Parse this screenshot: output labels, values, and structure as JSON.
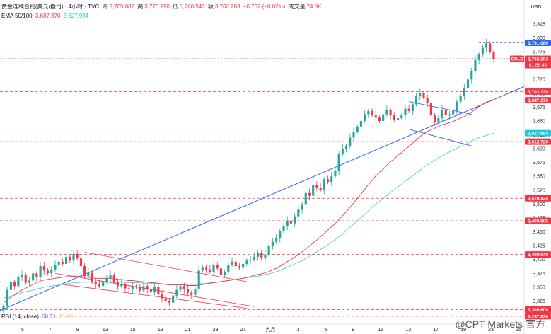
{
  "header": {
    "symbol": "黄金连续合约(美元/盎司) · 4小时 · TVC",
    "open_label": "开",
    "open": "3,765.882",
    "high_label": "高",
    "high": "3,770.190",
    "low_label": "低",
    "low": "3,760.540",
    "close_label": "收",
    "close": "3,762.283",
    "change": "−0.702 (−0.02%)",
    "volume_label": "成交量",
    "volume": "74.8K",
    "ema_title": "EMA 50/100",
    "ema50": "3,687.370",
    "ema100": "3,627.984",
    "rsi_title": "RSI (14, close)",
    "rsi_value": "68.31",
    "rsi_ma": "71.85"
  },
  "colors": {
    "up": "#26a69a",
    "down": "#f23645",
    "ema50": "#f23645",
    "ema100": "#4dd0e1",
    "trend": "#2962ff",
    "level": "#f23645",
    "channel": "#f23645",
    "resistance_dashed": "#2962ff"
  },
  "watermark": "@CPT Markets 官方",
  "chart_data": {
    "type": "candlestick",
    "currency": "USD",
    "ylim": [
      3300,
      3830
    ],
    "y_ticks": [
      3825,
      3800,
      3775,
      3750,
      3725,
      3700,
      3675,
      3650,
      3625,
      3600,
      3575,
      3550,
      3525,
      3500,
      3475,
      3450,
      3425,
      3400,
      3375,
      3350,
      3325,
      3300
    ],
    "x_ticks": [
      "5",
      "7",
      "9",
      "13",
      "15",
      "19",
      "21",
      "23",
      "27",
      "九月",
      "3",
      "5",
      "9",
      "11",
      "13",
      "17",
      "19",
      "23",
      "25"
    ],
    "price_labels": [
      {
        "value": 3791.08,
        "text": "3,791.080",
        "kind": "blue"
      },
      {
        "value": 3762.283,
        "text": "3,762.283",
        "kind": "red",
        "tag": "GOLD",
        "sub": "01:56:49"
      },
      {
        "value": 3703.13,
        "text": "3,703.130",
        "kind": "red"
      },
      {
        "value": 3687.37,
        "text": "3,687.370",
        "kind": "red"
      },
      {
        "value": 3627.984,
        "text": "3,627.984",
        "kind": "cyan"
      },
      {
        "value": 3612.72,
        "text": "3,612.720",
        "kind": "red"
      },
      {
        "value": 3510.425,
        "text": "3,510.425",
        "kind": "red"
      },
      {
        "value": 3469.805,
        "text": "3,469.805",
        "kind": "red"
      },
      {
        "value": 3409.04,
        "text": "3,409.040",
        "kind": "red"
      },
      {
        "value": 3309.6,
        "text": "3,309.600",
        "kind": "red"
      },
      {
        "value": 3297.63,
        "text": "3,297.630",
        "kind": "red"
      }
    ],
    "levels": [
      3703.13,
      3612.72,
      3510.425,
      3469.805,
      3409.04,
      3309.6,
      3297.63
    ],
    "closes": [
      3316,
      3345,
      3360,
      3352,
      3368,
      3372,
      3358,
      3362,
      3375,
      3368,
      3388,
      3380,
      3375,
      3382,
      3390,
      3396,
      3392,
      3405,
      3398,
      3410,
      3402,
      3388,
      3370,
      3376,
      3360,
      3355,
      3352,
      3360,
      3366,
      3372,
      3360,
      3352,
      3355,
      3348,
      3346,
      3352,
      3350,
      3344,
      3352,
      3346,
      3342,
      3350,
      3338,
      3330,
      3325,
      3322,
      3335,
      3345,
      3352,
      3346,
      3340,
      3336,
      3346,
      3380,
      3385,
      3382,
      3378,
      3390,
      3384,
      3372,
      3378,
      3390,
      3396,
      3388,
      3385,
      3392,
      3398,
      3400,
      3405,
      3412,
      3402,
      3408,
      3425,
      3432,
      3438,
      3452,
      3460,
      3470,
      3465,
      3478,
      3490,
      3500,
      3520,
      3515,
      3535,
      3530,
      3525,
      3545,
      3540,
      3550,
      3560,
      3590,
      3600,
      3605,
      3620,
      3630,
      3640,
      3650,
      3662,
      3668,
      3660,
      3656,
      3650,
      3662,
      3670,
      3660,
      3652,
      3655,
      3660,
      3672,
      3668,
      3680,
      3695,
      3700,
      3692,
      3682,
      3660,
      3648,
      3655,
      3670,
      3660,
      3662,
      3668,
      3685,
      3695,
      3710,
      3725,
      3740,
      3760,
      3770,
      3782,
      3790,
      3774,
      3762
    ],
    "ema50": [
      3322,
      3327,
      3332,
      3336,
      3341,
      3345,
      3348,
      3351,
      3355,
      3358,
      3361,
      3363,
      3364,
      3365,
      3366,
      3367,
      3368,
      3369,
      3369,
      3370,
      3370,
      3369,
      3368,
      3368,
      3367,
      3366,
      3366,
      3366,
      3366,
      3366,
      3365,
      3364,
      3364,
      3363,
      3362,
      3362,
      3361,
      3360,
      3360,
      3359,
      3358,
      3358,
      3357,
      3356,
      3355,
      3354,
      3354,
      3354,
      3354,
      3354,
      3353,
      3353,
      3353,
      3354,
      3355,
      3356,
      3357,
      3358,
      3359,
      3360,
      3361,
      3362,
      3363,
      3364,
      3365,
      3366,
      3368,
      3369,
      3371,
      3373,
      3374,
      3376,
      3378,
      3381,
      3384,
      3388,
      3392,
      3396,
      3400,
      3404,
      3409,
      3414,
      3419,
      3424,
      3430,
      3435,
      3441,
      3447,
      3453,
      3459,
      3465,
      3472,
      3479,
      3486,
      3494,
      3502,
      3510,
      3518,
      3527,
      3535,
      3543,
      3551,
      3557,
      3563,
      3570,
      3576,
      3582,
      3588,
      3593,
      3599,
      3604,
      3610,
      3616,
      3622,
      3627,
      3631,
      3634,
      3637,
      3640,
      3643,
      3645,
      3647,
      3649,
      3652,
      3655,
      3658,
      3662,
      3666,
      3671,
      3676,
      3680,
      3684,
      3686,
      3687.37
    ],
    "ema100": [
      3330,
      3332,
      3334,
      3336,
      3338,
      3340,
      3342,
      3343,
      3345,
      3347,
      3348,
      3350,
      3351,
      3352,
      3353,
      3354,
      3355,
      3356,
      3357,
      3358,
      3358,
      3359,
      3359,
      3359,
      3359,
      3359,
      3359,
      3359,
      3359,
      3359,
      3359,
      3359,
      3359,
      3359,
      3358,
      3358,
      3358,
      3358,
      3357,
      3357,
      3357,
      3357,
      3356,
      3356,
      3356,
      3355,
      3355,
      3355,
      3355,
      3355,
      3355,
      3355,
      3355,
      3356,
      3357,
      3357,
      3358,
      3359,
      3359,
      3360,
      3361,
      3362,
      3363,
      3364,
      3365,
      3366,
      3367,
      3368,
      3369,
      3370,
      3371,
      3373,
      3374,
      3376,
      3378,
      3380,
      3383,
      3386,
      3389,
      3392,
      3395,
      3398,
      3402,
      3406,
      3410,
      3414,
      3418,
      3422,
      3426,
      3431,
      3436,
      3441,
      3446,
      3452,
      3458,
      3464,
      3470,
      3476,
      3482,
      3488,
      3494,
      3500,
      3505,
      3510,
      3515,
      3521,
      3526,
      3531,
      3536,
      3541,
      3546,
      3551,
      3556,
      3561,
      3566,
      3571,
      3575,
      3579,
      3583,
      3587,
      3591,
      3594,
      3597,
      3601,
      3604,
      3607,
      3610,
      3614,
      3617,
      3620,
      3622,
      3624,
      3626,
      3627.98
    ]
  }
}
